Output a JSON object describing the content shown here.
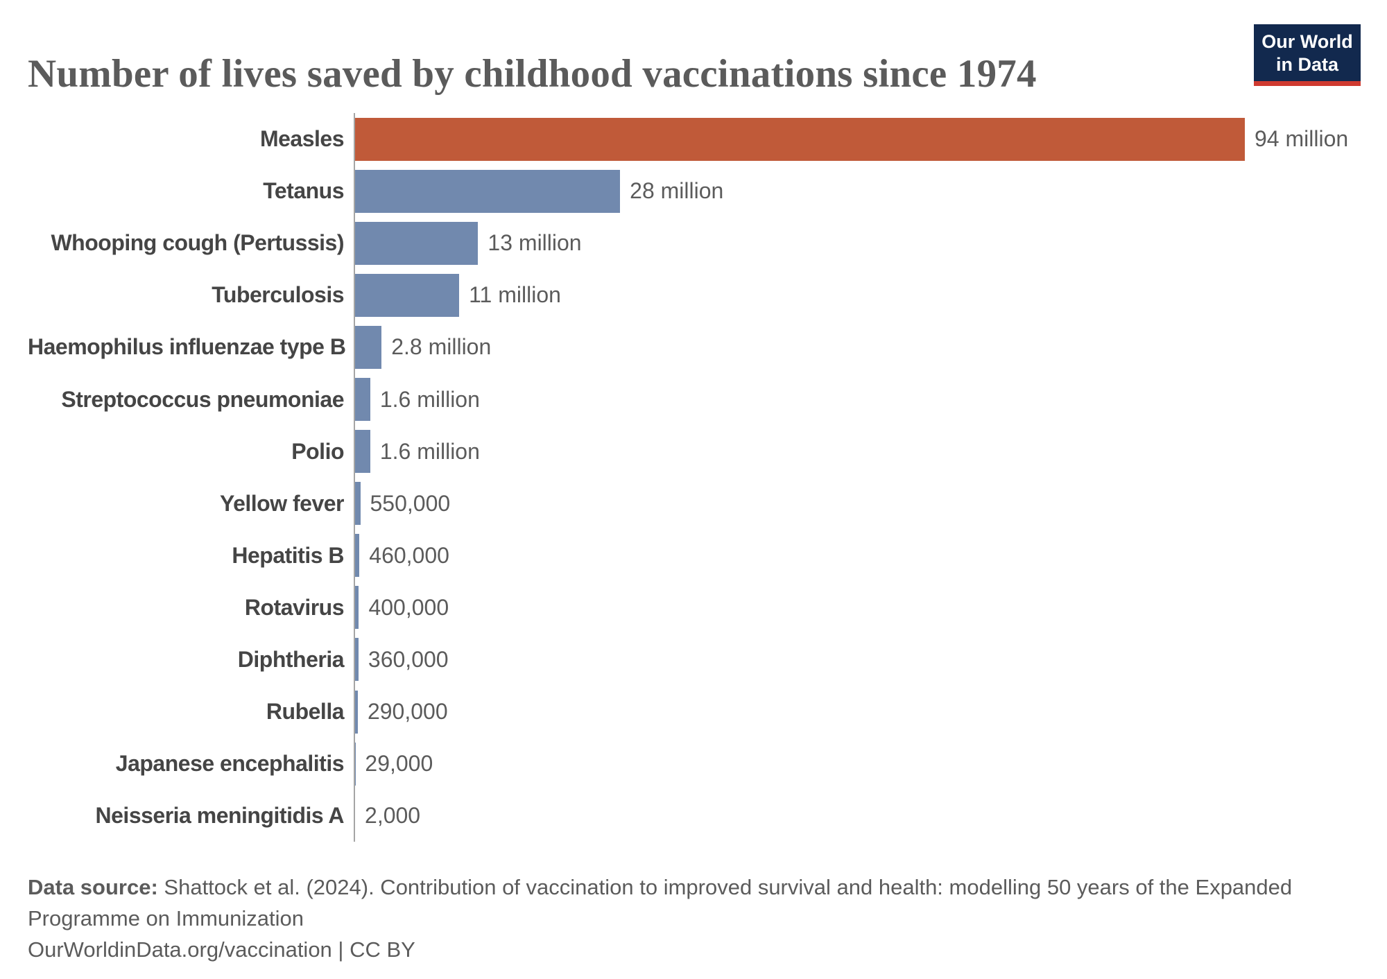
{
  "title": "Number of lives saved by childhood vaccinations since 1974",
  "logo": {
    "line1": "Our World",
    "line2": "in Data",
    "bg_color": "#12294e",
    "accent_color": "#cf3a30"
  },
  "chart_data": {
    "type": "bar",
    "orientation": "horizontal",
    "title": "Number of lives saved by childhood vaccinations since 1974",
    "xlabel": "",
    "ylabel": "",
    "xlim": [
      0,
      94000000
    ],
    "grid": false,
    "legend": "none",
    "categories": [
      "Measles",
      "Tetanus",
      "Whooping cough (Pertussis)",
      "Tuberculosis",
      "Haemophilus influenzae type B",
      "Streptococcus pneumoniae",
      "Polio",
      "Yellow fever",
      "Hepatitis B",
      "Rotavirus",
      "Diphtheria",
      "Rubella",
      "Japanese encephalitis",
      "Neisseria meningitidis A"
    ],
    "values": [
      94000000,
      28000000,
      13000000,
      11000000,
      2800000,
      1600000,
      1600000,
      550000,
      460000,
      400000,
      360000,
      290000,
      29000,
      2000
    ],
    "value_labels": [
      "94 million",
      "28 million",
      "13 million",
      "11 million",
      "2.8 million",
      "1.6 million",
      "1.6 million",
      "550,000",
      "460,000",
      "400,000",
      "360,000",
      "290,000",
      "29,000",
      "2,000"
    ],
    "highlight_index": 0,
    "colors": {
      "highlight": "#c05a39",
      "default": "#7189ae",
      "axis_line": "#a5a5a5",
      "category_text": "#454545",
      "value_text": "#5b5b5b"
    }
  },
  "footer": {
    "source_label": "Data source:",
    "source_text": " Shattock et al. (2024). Contribution of vaccination to improved survival and health: modelling 50 years of the Expanded Programme on Immunization",
    "license_line": "OurWorldinData.org/vaccination | CC BY"
  }
}
